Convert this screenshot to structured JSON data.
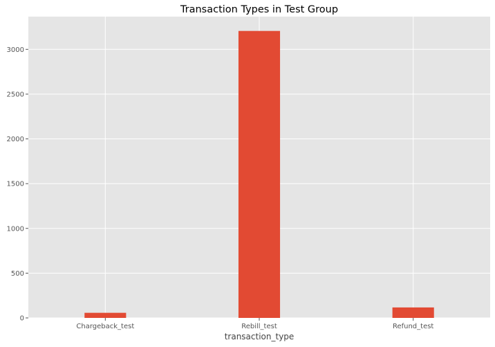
{
  "chart_data": {
    "type": "bar",
    "title": "Transaction Types in Test Group",
    "xlabel": "transaction_type",
    "ylabel": "",
    "categories": [
      "Chargeback_test",
      "Rebill_test",
      "Refund_test"
    ],
    "values": [
      57,
      3206,
      117
    ],
    "ylim": [
      0,
      3366
    ],
    "yticks": [
      0,
      500,
      1000,
      1500,
      2000,
      2500,
      3000
    ],
    "grid": true,
    "legend": "none",
    "colors": {
      "bar": "#E24A33",
      "plot_background": "#E5E5E5",
      "grid": "#FFFFFF"
    }
  }
}
